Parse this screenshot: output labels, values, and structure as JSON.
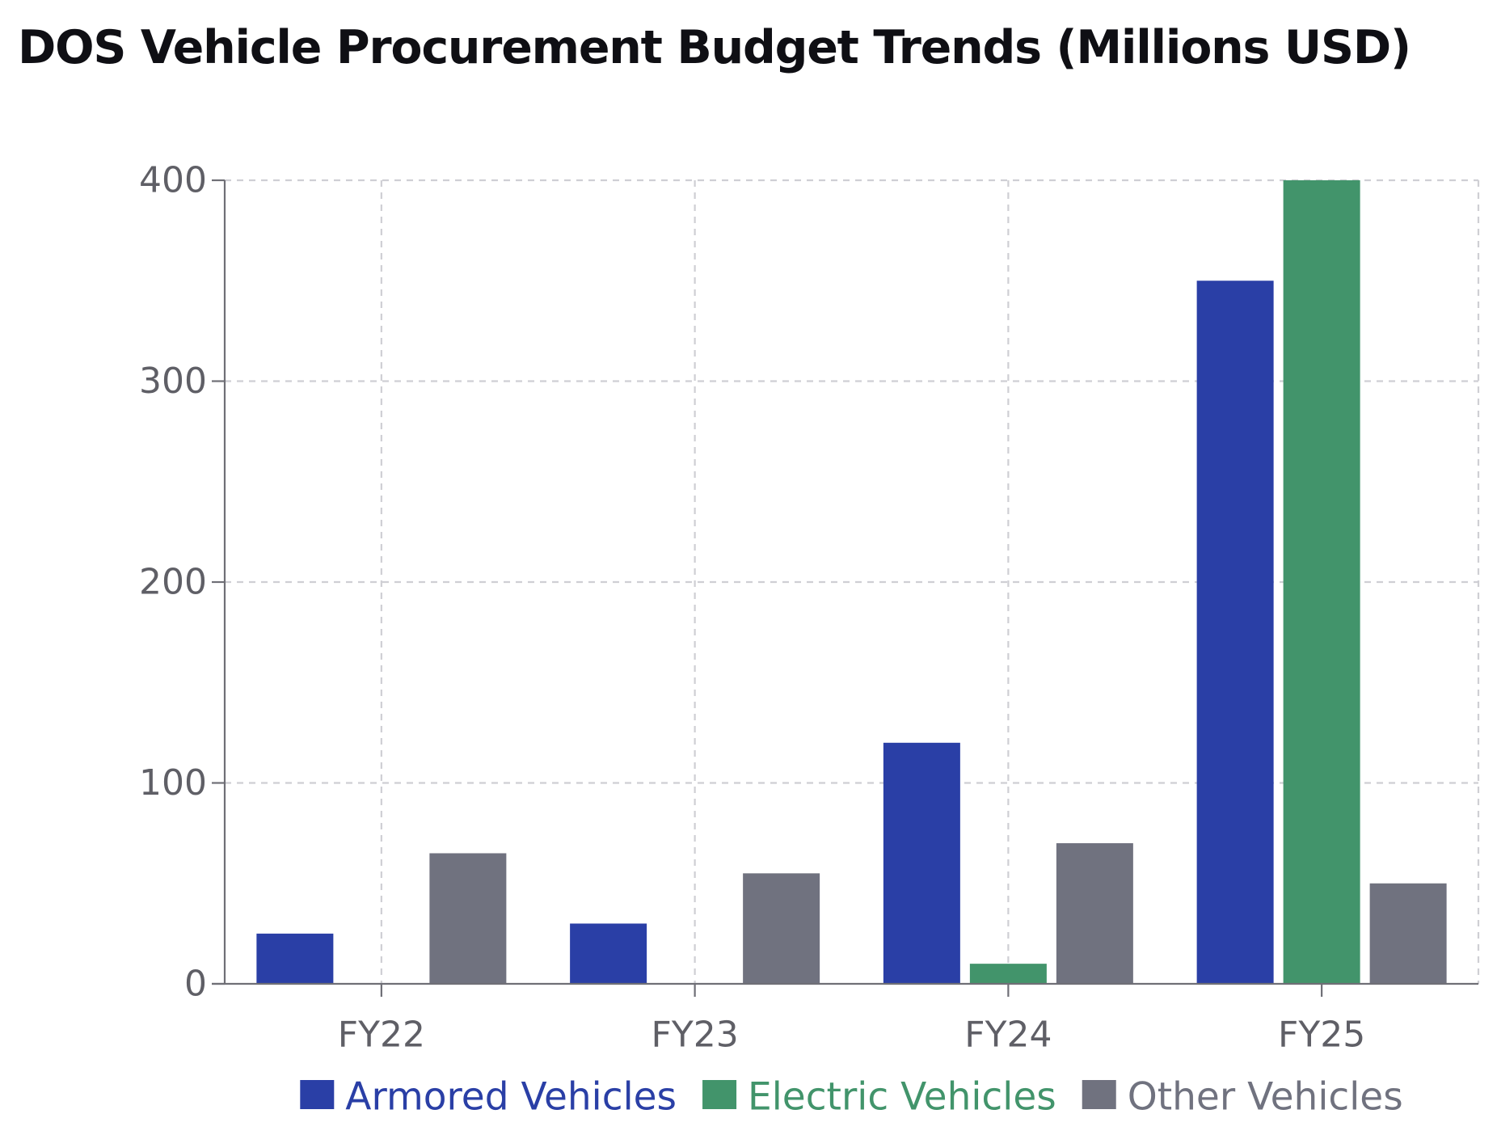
{
  "chart_data": {
    "type": "bar",
    "title": "DOS Vehicle Procurement Budget Trends (Millions USD)",
    "xlabel": "",
    "ylabel": "",
    "categories": [
      "FY22",
      "FY23",
      "FY24",
      "FY25"
    ],
    "series": [
      {
        "name": "Armored Vehicles",
        "color": "#2a3fa6",
        "values": [
          25,
          30,
          120,
          350
        ]
      },
      {
        "name": "Electric Vehicles",
        "color": "#42946b",
        "values": [
          0,
          0,
          10,
          400
        ]
      },
      {
        "name": "Other Vehicles",
        "color": "#70727f",
        "values": [
          65,
          55,
          70,
          50
        ]
      }
    ],
    "ylim": [
      0,
      400
    ],
    "yticks": [
      0,
      100,
      200,
      300,
      400
    ],
    "grid": true,
    "legend_position": "bottom-center"
  }
}
